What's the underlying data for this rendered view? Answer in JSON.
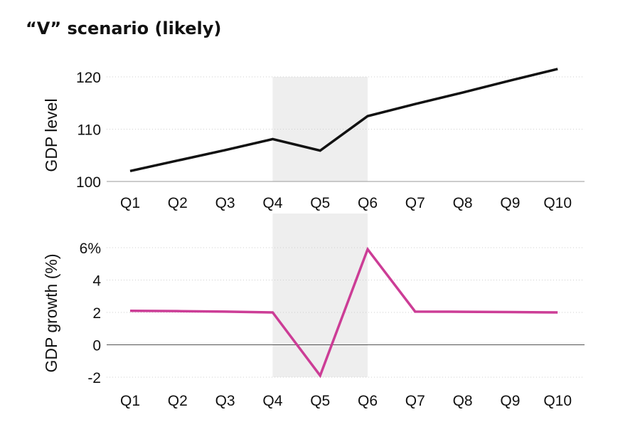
{
  "title": "“V” scenario (likely)",
  "colors": {
    "level_line": "#111111",
    "growth_line": "#cc3d96",
    "shade": "#eeeeee",
    "zero_line": "#555555",
    "axis_line": "#999999"
  },
  "chart_data": [
    {
      "type": "line",
      "ylabel": "GDP level",
      "categories": [
        "Q1",
        "Q2",
        "Q3",
        "Q4",
        "Q5",
        "Q6",
        "Q7",
        "Q8",
        "Q9",
        "Q10"
      ],
      "x_tick_labels": [
        "Q1",
        "Q2",
        "Q3",
        "Q4",
        "Q5",
        "Q6",
        "Q7",
        "Q8",
        "Q9",
        "Q10"
      ],
      "y_tick_labels": [
        "100",
        "110",
        "120"
      ],
      "y_ticks": [
        100,
        110,
        120
      ],
      "ylim": [
        100,
        120
      ],
      "grid": true,
      "shaded_range": [
        "Q4",
        "Q6"
      ],
      "series": [
        {
          "values": [
            102.0,
            104.0,
            106.0,
            108.1,
            105.9,
            112.5,
            114.8,
            117.0,
            119.3,
            121.5
          ]
        }
      ]
    },
    {
      "type": "line",
      "ylabel": "GDP growth (%)",
      "categories": [
        "Q1",
        "Q2",
        "Q3",
        "Q4",
        "Q5",
        "Q6",
        "Q7",
        "Q8",
        "Q9",
        "Q10"
      ],
      "x_tick_labels": [
        "Q1",
        "Q2",
        "Q3",
        "Q4",
        "Q5",
        "Q6",
        "Q7",
        "Q8",
        "Q9",
        "Q10"
      ],
      "y_tick_labels": [
        "-2",
        "0",
        "2",
        "4",
        "6%"
      ],
      "y_ticks": [
        -2,
        0,
        2,
        4,
        6
      ],
      "ylim": [
        -2,
        6
      ],
      "grid": true,
      "shaded_range": [
        "Q4",
        "Q6"
      ],
      "series": [
        {
          "values": [
            2.1,
            2.08,
            2.05,
            2.0,
            -1.9,
            5.9,
            2.05,
            2.04,
            2.02,
            2.0
          ]
        }
      ]
    }
  ]
}
